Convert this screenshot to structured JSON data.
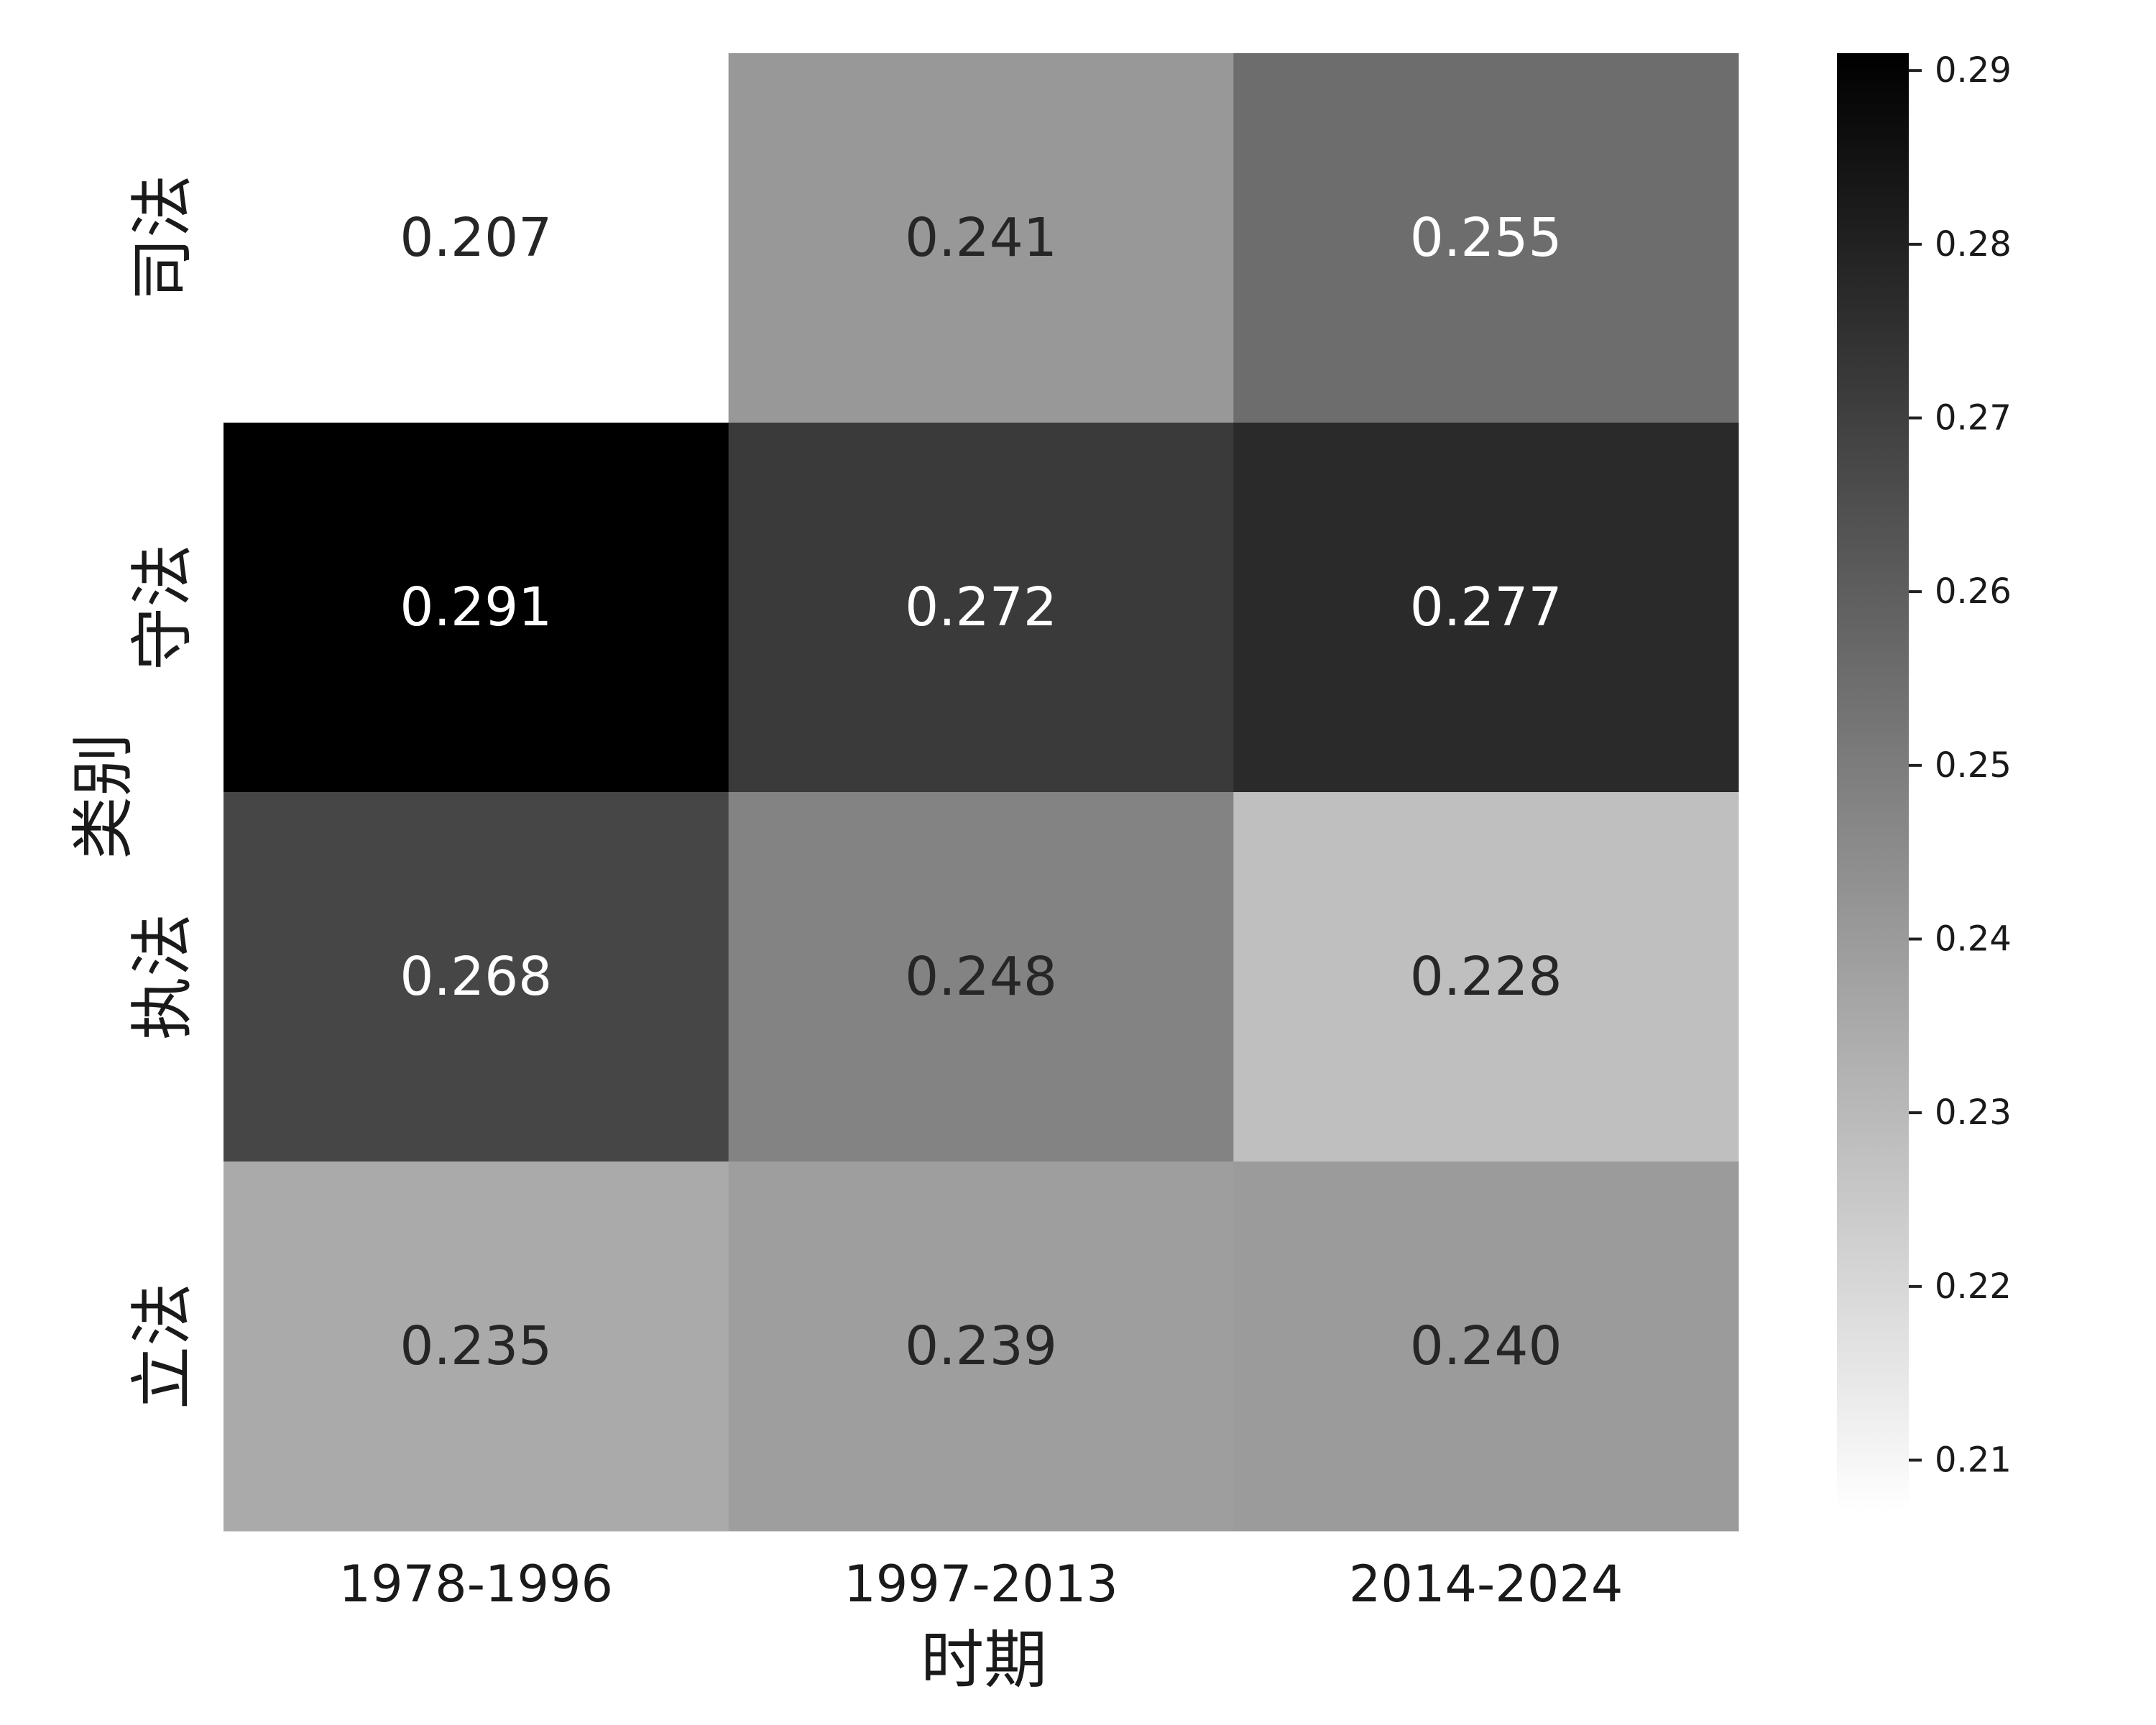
{
  "chart_data": {
    "type": "heatmap",
    "title": "",
    "xlabel": "时期",
    "ylabel": "类别",
    "x_categories": [
      "1978-1996",
      "1997-2013",
      "2014-2024"
    ],
    "y_categories": [
      "司法",
      "守法",
      "执法",
      "立法"
    ],
    "values": [
      [
        0.207,
        0.241,
        0.255
      ],
      [
        0.291,
        0.272,
        0.277
      ],
      [
        0.268,
        0.248,
        0.228
      ],
      [
        0.235,
        0.239,
        0.24
      ]
    ],
    "value_labels": [
      [
        "0.207",
        "0.241",
        "0.255"
      ],
      [
        "0.291",
        "0.272",
        "0.277"
      ],
      [
        "0.268",
        "0.248",
        "0.228"
      ],
      [
        "0.235",
        "0.239",
        "0.240"
      ]
    ],
    "colorscale": {
      "low": "#ffffff",
      "high": "#000000"
    },
    "colorbar": {
      "range": [
        0.207,
        0.291
      ],
      "ticks": [
        0.21,
        0.22,
        0.23,
        0.24,
        0.25,
        0.26,
        0.27,
        0.28,
        0.29
      ],
      "tick_labels": [
        "0.21",
        "0.22",
        "0.23",
        "0.24",
        "0.25",
        "0.26",
        "0.27",
        "0.28",
        "0.29"
      ]
    },
    "grid": false
  }
}
